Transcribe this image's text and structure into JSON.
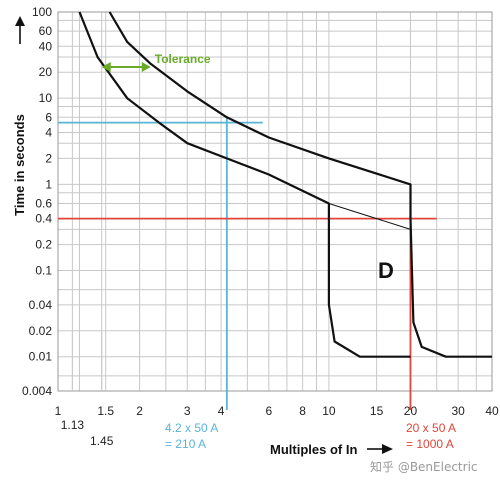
{
  "chart_data": {
    "type": "line",
    "xlabel": "Multiples of In",
    "ylabel": "Time in seconds",
    "xscale": "log",
    "yscale": "log",
    "xlim": [
      1,
      40
    ],
    "ylim": [
      0.004,
      100
    ],
    "grid": true,
    "x_ticks": [
      {
        "v": 1,
        "label": "1"
      },
      {
        "v": 1.5,
        "label": "1.5"
      },
      {
        "v": 2,
        "label": "2"
      },
      {
        "v": 3,
        "label": "3"
      },
      {
        "v": 4,
        "label": "4"
      },
      {
        "v": 6,
        "label": "6"
      },
      {
        "v": 8,
        "label": "8"
      },
      {
        "v": 10,
        "label": "10"
      },
      {
        "v": 15,
        "label": "15"
      },
      {
        "v": 20,
        "label": "20"
      },
      {
        "v": 30,
        "label": "30"
      },
      {
        "v": 40,
        "label": "40"
      }
    ],
    "x_ticks_offset": [
      {
        "v": 1.13,
        "label": "1.13"
      },
      {
        "v": 1.45,
        "label": "1.45"
      }
    ],
    "x_grid": [
      1,
      1.13,
      1.2,
      1.45,
      1.5,
      2,
      2.5,
      3,
      3.5,
      4,
      5,
      6,
      7,
      8,
      9,
      10,
      15,
      20,
      25,
      30,
      35,
      40
    ],
    "y_ticks": [
      {
        "v": 100,
        "label": "100"
      },
      {
        "v": 60,
        "label": "60"
      },
      {
        "v": 40,
        "label": "40"
      },
      {
        "v": 20,
        "label": "20"
      },
      {
        "v": 10,
        "label": "10"
      },
      {
        "v": 6,
        "label": "6"
      },
      {
        "v": 4,
        "label": "4"
      },
      {
        "v": 2,
        "label": "2"
      },
      {
        "v": 1,
        "label": "1"
      },
      {
        "v": 0.6,
        "label": "0.6"
      },
      {
        "v": 0.4,
        "label": "0.4"
      },
      {
        "v": 0.2,
        "label": "0.2"
      },
      {
        "v": 0.1,
        "label": "0.1"
      },
      {
        "v": 0.04,
        "label": "0.04"
      },
      {
        "v": 0.02,
        "label": "0.02"
      },
      {
        "v": 0.01,
        "label": "0.01"
      },
      {
        "v": 0.004,
        "label": "0.004"
      }
    ],
    "y_grid": [
      100,
      80,
      60,
      40,
      30,
      20,
      10,
      8,
      6,
      4,
      3,
      2,
      1,
      0.8,
      0.6,
      0.4,
      0.3,
      0.2,
      0.1,
      0.06,
      0.04,
      0.02,
      0.01,
      0.006,
      0.004
    ],
    "series": [
      {
        "points": [
          [
            1.55,
            100
          ],
          [
            1.8,
            45
          ],
          [
            2.2,
            25
          ],
          [
            3,
            12
          ],
          [
            4.2,
            6
          ],
          [
            6,
            3.5
          ],
          [
            10,
            2
          ],
          [
            20,
            1
          ],
          [
            20,
            0.4
          ],
          [
            20.5,
            0.025
          ],
          [
            22,
            0.013
          ],
          [
            27,
            0.01
          ],
          [
            40,
            0.01
          ]
        ]
      },
      {
        "points": [
          [
            1.2,
            100
          ],
          [
            1.4,
            30
          ],
          [
            1.8,
            10
          ],
          [
            2.4,
            5
          ],
          [
            3,
            3
          ],
          [
            4.2,
            2
          ],
          [
            6,
            1.3
          ],
          [
            10,
            0.6
          ],
          [
            10,
            0.04
          ],
          [
            10.5,
            0.015
          ],
          [
            13,
            0.01
          ],
          [
            20,
            0.01
          ]
        ]
      },
      {
        "points": [
          [
            10,
            0.6
          ],
          [
            15,
            0.4
          ],
          [
            20,
            0.3
          ]
        ]
      }
    ],
    "region_label": "D",
    "tolerance": {
      "label": "Tolerance",
      "color": "#6aaa2a",
      "y": 23,
      "x_from": 1.45,
      "x_to": 2.2
    },
    "ref_lines": [
      {
        "color": "#5ab4d6",
        "y": 5.2,
        "x": 4.2,
        "x_from": 1,
        "x_to": 5.7,
        "y_from": 6
      },
      {
        "color": "#e0463a",
        "y": 0.4,
        "x": 20,
        "x_from": 1,
        "x_to": 25,
        "y_from": 0.6
      }
    ],
    "annotations": {
      "blue": {
        "line1": "4.2 x 50 A",
        "line2": "= 210 A",
        "color": "#5ab4d6"
      },
      "red": {
        "line1": "20 x 50 A",
        "line2": "= 1000 A",
        "color": "#e0463a"
      }
    }
  },
  "watermark": "知乎 @BenElectric"
}
